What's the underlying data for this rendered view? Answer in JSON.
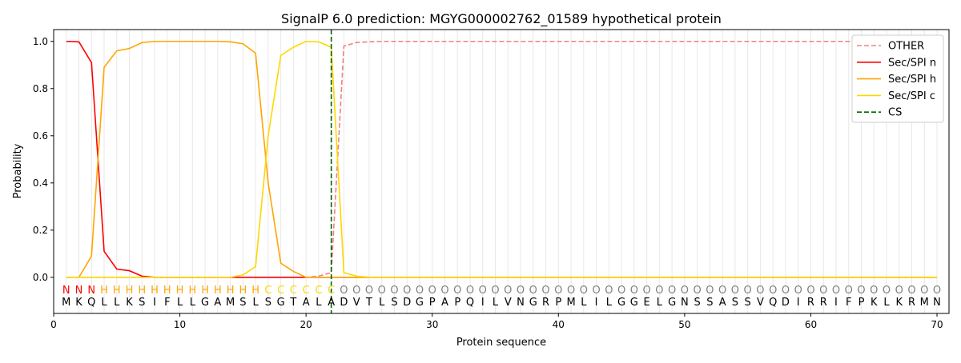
{
  "chart_data": {
    "type": "line",
    "title": "SignalP 6.0 prediction: MGYG000002762_01589 hypothetical protein",
    "xlabel": "Protein sequence",
    "ylabel": "Probability",
    "xlim": [
      0,
      70.95
    ],
    "ylim": [
      -0.153,
      1.05
    ],
    "xticks": [
      0,
      10,
      20,
      30,
      40,
      50,
      60,
      70
    ],
    "yticks": [
      0.0,
      0.2,
      0.4,
      0.6,
      0.8,
      1.0
    ],
    "ytick_labels": [
      "0.0",
      "0.2",
      "0.4",
      "0.6",
      "0.8",
      "1.0"
    ],
    "legend_placement": "top-right",
    "sequence": [
      "M",
      "K",
      "Q",
      "L",
      "L",
      "K",
      "S",
      "I",
      "F",
      "L",
      "L",
      "G",
      "A",
      "M",
      "S",
      "L",
      "S",
      "G",
      "T",
      "A",
      "L",
      "A",
      "D",
      "V",
      "T",
      "L",
      "S",
      "D",
      "G",
      "P",
      "A",
      "P",
      "Q",
      "I",
      "L",
      "V",
      "N",
      "G",
      "R",
      "P",
      "M",
      "L",
      "I",
      "L",
      "G",
      "G",
      "E",
      "L",
      "G",
      "N",
      "S",
      "S",
      "A",
      "S",
      "S",
      "V",
      "Q",
      "D",
      "I",
      "R",
      "R",
      "I",
      "F",
      "P",
      "K",
      "L",
      "K",
      "R",
      "M",
      "N"
    ],
    "labels": [
      "N",
      "N",
      "N",
      "H",
      "H",
      "H",
      "H",
      "H",
      "H",
      "H",
      "H",
      "H",
      "H",
      "H",
      "H",
      "H",
      "C",
      "C",
      "C",
      "C",
      "C",
      "C",
      "O",
      "O",
      "O",
      "O",
      "O",
      "O",
      "O",
      "O",
      "O",
      "O",
      "O",
      "O",
      "O",
      "O",
      "O",
      "O",
      "O",
      "O",
      "O",
      "O",
      "O",
      "O",
      "O",
      "O",
      "O",
      "O",
      "O",
      "O",
      "O",
      "O",
      "O",
      "O",
      "O",
      "O",
      "O",
      "O",
      "O",
      "O",
      "O",
      "O",
      "O",
      "O",
      "O",
      "O",
      "O",
      "O",
      "O",
      "O"
    ],
    "label_colors": {
      "N": "#ff0000",
      "H": "#ffa500",
      "C": "#ffd700",
      "O": "#808080"
    },
    "series": [
      {
        "name": "OTHER",
        "color": "#f08080",
        "dash": true,
        "values": [
          0,
          0,
          0,
          0,
          0,
          0,
          0,
          0,
          0,
          0,
          0,
          0,
          0,
          0,
          0,
          0,
          0,
          0,
          0,
          0,
          0.005,
          0.02,
          0.98,
          0.995,
          0.998,
          1,
          1,
          1,
          1,
          1,
          1,
          1,
          1,
          1,
          1,
          1,
          1,
          1,
          1,
          1,
          1,
          1,
          1,
          1,
          1,
          1,
          1,
          1,
          1,
          1,
          1,
          1,
          1,
          1,
          1,
          1,
          1,
          1,
          1,
          1,
          1,
          1,
          1,
          1,
          1,
          1,
          1,
          1,
          1,
          1
        ]
      },
      {
        "name": "Sec/SPI n",
        "color": "#ff0000",
        "values": [
          1.0,
          0.998,
          0.91,
          0.11,
          0.035,
          0.028,
          0.005,
          0,
          0,
          0,
          0,
          0,
          0,
          0,
          0,
          0,
          0,
          0,
          0,
          0,
          0,
          0,
          0,
          0,
          0,
          0,
          0,
          0,
          0,
          0,
          0,
          0,
          0,
          0,
          0,
          0,
          0,
          0,
          0,
          0,
          0,
          0,
          0,
          0,
          0,
          0,
          0,
          0,
          0,
          0,
          0,
          0,
          0,
          0,
          0,
          0,
          0,
          0,
          0,
          0,
          0,
          0,
          0,
          0,
          0,
          0,
          0,
          0,
          0,
          0
        ]
      },
      {
        "name": "Sec/SPI h",
        "color": "#ffa500",
        "values": [
          0,
          0,
          0.09,
          0.89,
          0.96,
          0.97,
          0.995,
          1,
          1,
          1,
          1,
          1,
          1,
          0.998,
          0.99,
          0.95,
          0.4,
          0.06,
          0.025,
          0,
          0,
          0,
          0,
          0,
          0,
          0,
          0,
          0,
          0,
          0,
          0,
          0,
          0,
          0,
          0,
          0,
          0,
          0,
          0,
          0,
          0,
          0,
          0,
          0,
          0,
          0,
          0,
          0,
          0,
          0,
          0,
          0,
          0,
          0,
          0,
          0,
          0,
          0,
          0,
          0,
          0,
          0,
          0,
          0,
          0,
          0,
          0,
          0,
          0,
          0
        ]
      },
      {
        "name": "Sec/SPI c",
        "color": "#ffd700",
        "values": [
          0,
          0,
          0,
          0,
          0,
          0,
          0,
          0,
          0,
          0,
          0,
          0,
          0,
          0,
          0.01,
          0.045,
          0.6,
          0.94,
          0.975,
          1.0,
          0.998,
          0.975,
          0.02,
          0.005,
          0,
          0,
          0,
          0,
          0,
          0,
          0,
          0,
          0,
          0,
          0,
          0,
          0,
          0,
          0,
          0,
          0,
          0,
          0,
          0,
          0,
          0,
          0,
          0,
          0,
          0,
          0,
          0,
          0,
          0,
          0,
          0,
          0,
          0,
          0,
          0,
          0,
          0,
          0,
          0,
          0,
          0,
          0,
          0,
          0,
          0
        ]
      }
    ],
    "cs": {
      "name": "CS",
      "position": 22,
      "color": "#006400"
    }
  }
}
